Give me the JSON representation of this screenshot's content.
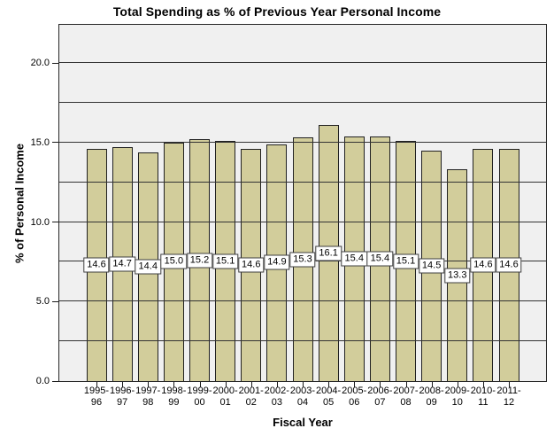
{
  "chart_data": {
    "type": "bar",
    "title": "Total Spending as % of Previous Year Personal Income",
    "xlabel": "Fiscal Year",
    "ylabel": "% of Personal Income",
    "categories": [
      "1995-96",
      "1996-97",
      "1997-98",
      "1998-99",
      "1999-00",
      "2000-01",
      "2001-02",
      "2002-03",
      "2003-04",
      "2004-05",
      "2005-06",
      "2006-07",
      "2007-08",
      "2008-09",
      "2009-10",
      "2010-11",
      "2011-12"
    ],
    "values": [
      14.6,
      14.7,
      14.4,
      15.0,
      15.2,
      15.1,
      14.6,
      14.9,
      15.3,
      16.1,
      15.4,
      15.4,
      15.1,
      14.5,
      13.3,
      14.6,
      14.6
    ],
    "value_label_decimals": 1,
    "yticks": [
      0,
      5,
      10,
      15,
      20
    ],
    "ytick_decimals": 1,
    "ylim": [
      0,
      22.4
    ],
    "grid_interval": 2.5,
    "grid_on": true,
    "legend": "none",
    "colors": {
      "bar_fill": "#d2cd9b",
      "bar_border": "#212121",
      "plot_background": "#f0f0f0",
      "gridline": "#333333",
      "frame": "#262626",
      "label_box_fill": "#ffffff",
      "label_box_border": "#3f3f3f",
      "text": "#000000"
    }
  }
}
